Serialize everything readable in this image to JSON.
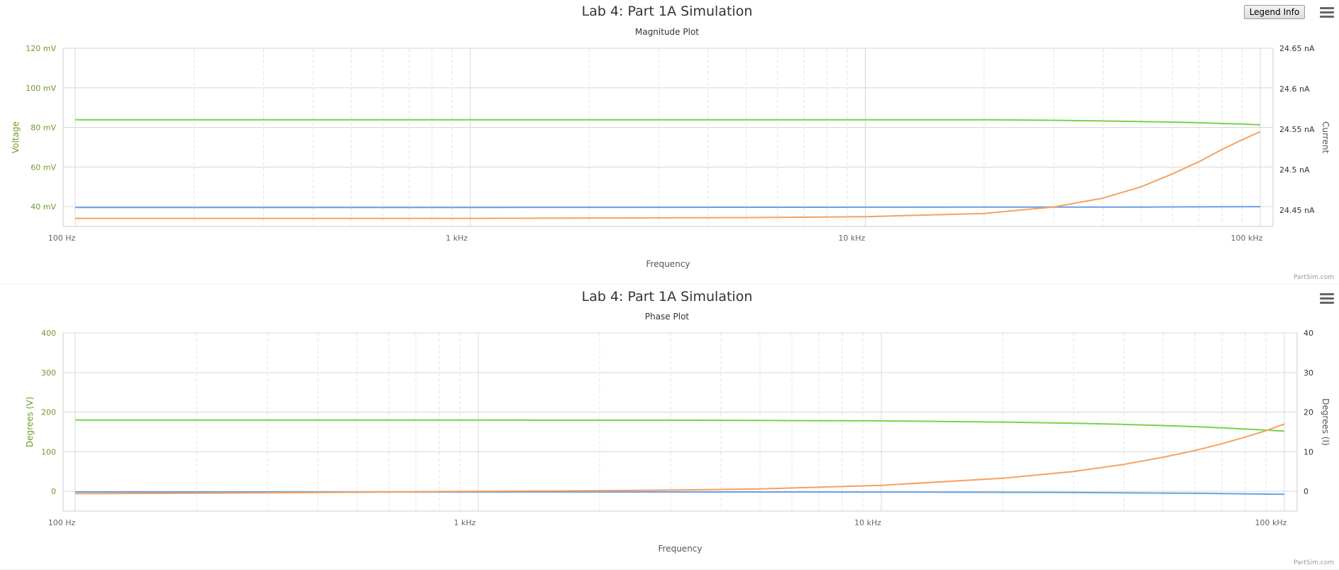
{
  "legend_button_label": "Legend Info",
  "colors": {
    "green": "#77d34a",
    "orange": "#f5a15e",
    "blue": "#6aa0e6",
    "left_axis_text": "#6f9a2c",
    "grid": "#d8d8d8"
  },
  "chart_data": [
    {
      "type": "line",
      "title": "Lab 4: Part 1A Simulation",
      "subtitle": "Magnitude Plot",
      "credits": "PartSim.com",
      "xlabel": "Frequency",
      "x_scale": "log",
      "xlim": [
        100,
        100000
      ],
      "x_tick_values": [
        100,
        1000,
        10000,
        100000
      ],
      "x_tick_labels": [
        "100 Hz",
        "1 kHz",
        "10 kHz",
        "100 kHz"
      ],
      "y_left": {
        "label": "Voltage",
        "lim": [
          30,
          120
        ],
        "tick_values": [
          40,
          60,
          80,
          100,
          120
        ],
        "tick_labels": [
          "40 mV",
          "60 mV",
          "80 mV",
          "100 mV",
          "120 mV"
        ]
      },
      "y_right": {
        "label": "Current",
        "lim": [
          24.43,
          24.65
        ],
        "tick_values": [
          24.45,
          24.5,
          24.55,
          24.6,
          24.65
        ],
        "tick_labels": [
          "24.45 nA",
          "24.5 nA",
          "24.55 nA",
          "24.6 nA",
          "24.65 nA"
        ]
      },
      "grid": true,
      "series": [
        {
          "color": "green",
          "axis": "left",
          "x": [
            100,
            1000,
            10000,
            20000,
            30000,
            40000,
            50000,
            60000,
            70000,
            80000,
            90000,
            100000
          ],
          "y": [
            83.9,
            83.9,
            83.9,
            83.9,
            83.6,
            83.3,
            83.0,
            82.7,
            82.4,
            82.0,
            81.7,
            81.3
          ]
        },
        {
          "color": "blue",
          "axis": "left",
          "x": [
            100,
            1000,
            10000,
            50000,
            100000
          ],
          "y": [
            39.6,
            39.6,
            39.7,
            39.8,
            40.0
          ]
        },
        {
          "color": "orange",
          "axis": "right",
          "x": [
            100,
            1000,
            5000,
            10000,
            20000,
            30000,
            40000,
            50000,
            60000,
            70000,
            80000,
            90000,
            100000
          ],
          "y": [
            24.44,
            24.44,
            24.441,
            24.442,
            24.446,
            24.454,
            24.465,
            24.479,
            24.495,
            24.51,
            24.525,
            24.537,
            24.547
          ]
        }
      ]
    },
    {
      "type": "line",
      "title": "Lab 4: Part 1A Simulation",
      "subtitle": "Phase Plot",
      "credits": "PartSim.com",
      "xlabel": "Frequency",
      "x_scale": "log",
      "xlim": [
        100,
        100000
      ],
      "x_tick_values": [
        100,
        1000,
        10000,
        100000
      ],
      "x_tick_labels": [
        "100 Hz",
        "1 kHz",
        "10 kHz",
        "100 kHz"
      ],
      "y_left": {
        "label": "Degrees (V)",
        "lim": [
          -50,
          400
        ],
        "tick_values": [
          0,
          100,
          200,
          300,
          400
        ],
        "tick_labels": [
          "0",
          "100",
          "200",
          "300",
          "400"
        ]
      },
      "y_right": {
        "label": "Degrees (I)",
        "lim": [
          -5,
          40
        ],
        "tick_values": [
          0,
          10,
          20,
          30,
          40
        ],
        "tick_labels": [
          "0",
          "10",
          "20",
          "30",
          "40"
        ]
      },
      "grid": true,
      "series": [
        {
          "color": "green",
          "axis": "left",
          "x": [
            100,
            1000,
            3000,
            10000,
            20000,
            30000,
            40000,
            50000,
            60000,
            70000,
            80000,
            90000,
            100000
          ],
          "y": [
            180,
            179.9,
            179.6,
            177.8,
            174.9,
            171.9,
            168.9,
            166.0,
            163.1,
            160.2,
            157.3,
            154.6,
            151.8
          ]
        },
        {
          "color": "blue",
          "axis": "left",
          "x": [
            100,
            1000,
            10000,
            30000,
            60000,
            100000
          ],
          "y": [
            -1.6,
            -1.7,
            -2.0,
            -3.0,
            -5.0,
            -7.5
          ]
        },
        {
          "color": "orange",
          "axis": "right",
          "x": [
            100,
            300,
            1000,
            2000,
            3000,
            5000,
            10000,
            20000,
            30000,
            40000,
            50000,
            60000,
            70000,
            80000,
            90000,
            100000
          ],
          "y": [
            -0.6,
            -0.4,
            0,
            0.15,
            0.3,
            0.6,
            1.5,
            3.3,
            5.0,
            6.8,
            8.6,
            10.3,
            12.0,
            13.7,
            15.3,
            17.0
          ]
        }
      ]
    }
  ]
}
